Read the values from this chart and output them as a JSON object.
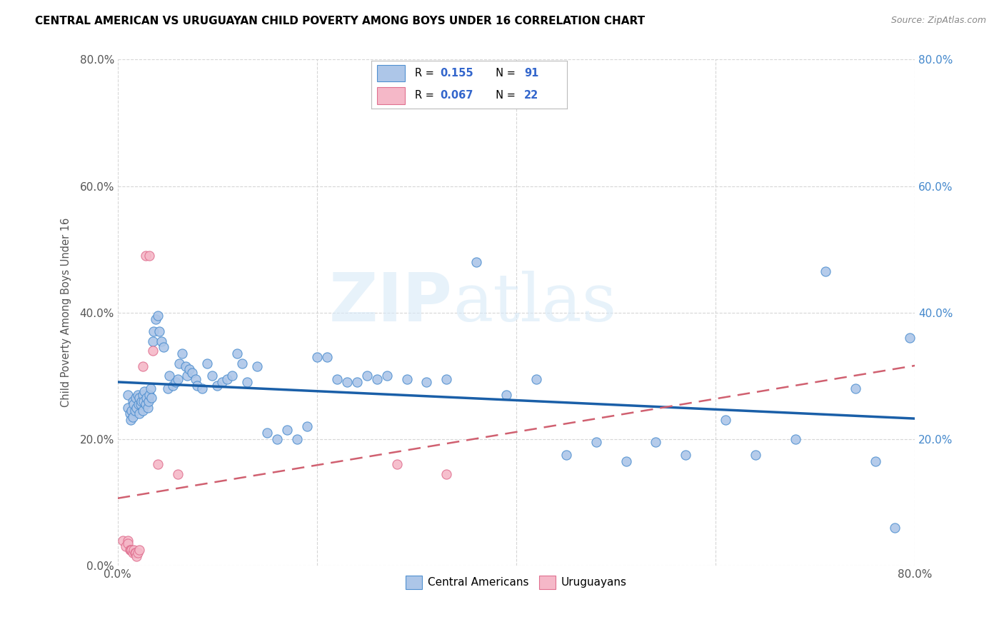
{
  "title": "CENTRAL AMERICAN VS URUGUAYAN CHILD POVERTY AMONG BOYS UNDER 16 CORRELATION CHART",
  "source": "Source: ZipAtlas.com",
  "ylabel": "Child Poverty Among Boys Under 16",
  "xlim": [
    0,
    0.8
  ],
  "ylim": [
    0,
    0.8
  ],
  "x_ticks": [
    0.0,
    0.2,
    0.4,
    0.6,
    0.8
  ],
  "y_ticks": [
    0.0,
    0.2,
    0.4,
    0.6,
    0.8
  ],
  "x_tick_labels": [
    "0.0%",
    "",
    "",
    "",
    ""
  ],
  "x_tick_labels_right": [
    "",
    "",
    "",
    "",
    "80.0%"
  ],
  "y_tick_labels_left": [
    "0.0%",
    "20.0%",
    "40.0%",
    "60.0%",
    "80.0%"
  ],
  "y_tick_labels_right": [
    "",
    "20.0%",
    "40.0%",
    "60.0%",
    "80.0%"
  ],
  "r_ca": 0.155,
  "n_ca": 91,
  "r_uy": 0.067,
  "n_uy": 22,
  "color_ca": "#adc6e8",
  "color_uy": "#f5b8c8",
  "edge_color_ca": "#5090d0",
  "edge_color_uy": "#e07090",
  "line_color_ca": "#1a5fa8",
  "line_color_uy": "#d06070",
  "watermark_zip": "ZIP",
  "watermark_atlas": "atlas",
  "ca_x": [
    0.01,
    0.01,
    0.012,
    0.013,
    0.014,
    0.015,
    0.015,
    0.016,
    0.017,
    0.018,
    0.019,
    0.02,
    0.021,
    0.022,
    0.022,
    0.023,
    0.024,
    0.025,
    0.025,
    0.026,
    0.027,
    0.028,
    0.029,
    0.03,
    0.031,
    0.032,
    0.033,
    0.034,
    0.035,
    0.036,
    0.038,
    0.04,
    0.042,
    0.044,
    0.046,
    0.05,
    0.052,
    0.055,
    0.058,
    0.06,
    0.062,
    0.065,
    0.068,
    0.07,
    0.072,
    0.075,
    0.078,
    0.08,
    0.085,
    0.09,
    0.095,
    0.1,
    0.105,
    0.11,
    0.115,
    0.12,
    0.125,
    0.13,
    0.14,
    0.15,
    0.16,
    0.17,
    0.18,
    0.19,
    0.2,
    0.21,
    0.22,
    0.23,
    0.24,
    0.25,
    0.26,
    0.27,
    0.29,
    0.31,
    0.33,
    0.36,
    0.39,
    0.42,
    0.45,
    0.48,
    0.51,
    0.54,
    0.57,
    0.61,
    0.64,
    0.68,
    0.71,
    0.74,
    0.76,
    0.78,
    0.795
  ],
  "ca_y": [
    0.27,
    0.25,
    0.24,
    0.23,
    0.245,
    0.26,
    0.235,
    0.255,
    0.245,
    0.265,
    0.25,
    0.27,
    0.255,
    0.265,
    0.24,
    0.255,
    0.26,
    0.27,
    0.245,
    0.26,
    0.275,
    0.255,
    0.265,
    0.25,
    0.26,
    0.27,
    0.28,
    0.265,
    0.355,
    0.37,
    0.39,
    0.395,
    0.37,
    0.355,
    0.345,
    0.28,
    0.3,
    0.285,
    0.29,
    0.295,
    0.32,
    0.335,
    0.315,
    0.3,
    0.31,
    0.305,
    0.295,
    0.285,
    0.28,
    0.32,
    0.3,
    0.285,
    0.29,
    0.295,
    0.3,
    0.335,
    0.32,
    0.29,
    0.315,
    0.21,
    0.2,
    0.215,
    0.2,
    0.22,
    0.33,
    0.33,
    0.295,
    0.29,
    0.29,
    0.3,
    0.295,
    0.3,
    0.295,
    0.29,
    0.295,
    0.48,
    0.27,
    0.295,
    0.175,
    0.195,
    0.165,
    0.195,
    0.175,
    0.23,
    0.175,
    0.2,
    0.465,
    0.28,
    0.165,
    0.06,
    0.36
  ],
  "uy_x": [
    0.005,
    0.008,
    0.01,
    0.01,
    0.012,
    0.013,
    0.014,
    0.015,
    0.016,
    0.017,
    0.018,
    0.019,
    0.02,
    0.022,
    0.025,
    0.028,
    0.032,
    0.035,
    0.04,
    0.06,
    0.28,
    0.33
  ],
  "uy_y": [
    0.04,
    0.03,
    0.04,
    0.035,
    0.025,
    0.025,
    0.025,
    0.02,
    0.025,
    0.02,
    0.02,
    0.015,
    0.02,
    0.025,
    0.315,
    0.49,
    0.49,
    0.34,
    0.16,
    0.145,
    0.16,
    0.145
  ]
}
